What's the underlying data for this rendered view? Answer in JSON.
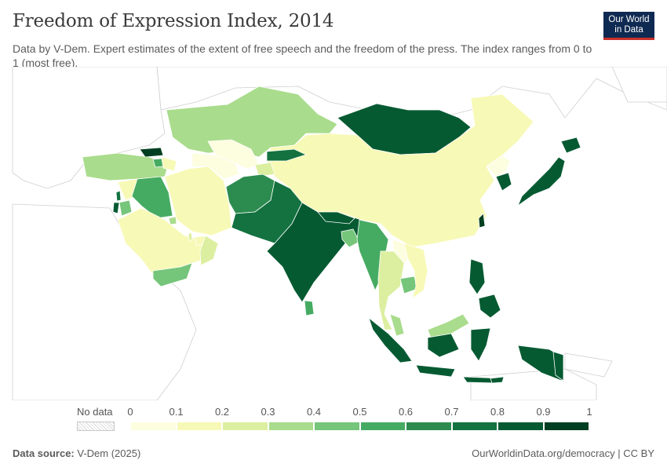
{
  "title": "Freedom of Expression Index, 2014",
  "subtitle": "Data by V-Dem. Expert estimates of the extent of free speech and the freedom of the press. The index ranges from 0 to 1 (most free).",
  "logo": {
    "line1": "Our World",
    "line2": "in Data"
  },
  "legend": {
    "no_data_label": "No data",
    "ticks": [
      "0",
      "0.1",
      "0.2",
      "0.3",
      "0.4",
      "0.5",
      "0.6",
      "0.7",
      "0.8",
      "0.9",
      "1"
    ],
    "colors": [
      "#fdfde0",
      "#f7f9b6",
      "#dcefa0",
      "#a9dc8c",
      "#75c57a",
      "#46ab62",
      "#2c8c4f",
      "#137240",
      "#065a32",
      "#003f21"
    ]
  },
  "footer": {
    "source_label": "Data source:",
    "source_value": "V-Dem (2025)",
    "url": "OurWorldinData.org/democracy | CC BY"
  },
  "map_data": {
    "region": "Asia",
    "year": "2014",
    "countries": [
      {
        "name": "Kazakhstan",
        "value": 0.35
      },
      {
        "name": "Mongolia",
        "value": 0.85
      },
      {
        "name": "China",
        "value": 0.12
      },
      {
        "name": "North Korea",
        "value": 0.02
      },
      {
        "name": "South Korea",
        "value": 0.8
      },
      {
        "name": "Japan",
        "value": 0.85
      },
      {
        "name": "Turkey",
        "value": 0.35
      },
      {
        "name": "Iran",
        "value": 0.15
      },
      {
        "name": "Iraq",
        "value": 0.55
      },
      {
        "name": "Syria",
        "value": 0.1
      },
      {
        "name": "Saudi Arabia",
        "value": 0.12
      },
      {
        "name": "Yemen",
        "value": 0.5
      },
      {
        "name": "Oman",
        "value": 0.2
      },
      {
        "name": "Turkmenistan",
        "value": 0.05
      },
      {
        "name": "Uzbekistan",
        "value": 0.05
      },
      {
        "name": "Kyrgyzstan",
        "value": 0.7
      },
      {
        "name": "Tajikistan",
        "value": 0.2
      },
      {
        "name": "Afghanistan",
        "value": 0.65
      },
      {
        "name": "Pakistan",
        "value": 0.75
      },
      {
        "name": "India",
        "value": 0.85
      },
      {
        "name": "Nepal",
        "value": 0.8
      },
      {
        "name": "Bangladesh",
        "value": 0.45
      },
      {
        "name": "Myanmar",
        "value": 0.55
      },
      {
        "name": "Thailand",
        "value": 0.3
      },
      {
        "name": "Laos",
        "value": 0.05
      },
      {
        "name": "Vietnam",
        "value": 0.12
      },
      {
        "name": "Cambodia",
        "value": 0.45
      },
      {
        "name": "Malaysia",
        "value": 0.4
      },
      {
        "name": "Indonesia",
        "value": 0.85
      },
      {
        "name": "Philippines",
        "value": 0.85
      },
      {
        "name": "Sri Lanka",
        "value": 0.55
      },
      {
        "name": "Georgia",
        "value": 0.9
      },
      {
        "name": "Armenia",
        "value": 0.5
      },
      {
        "name": "Azerbaijan",
        "value": 0.1
      },
      {
        "name": "Israel",
        "value": 0.85
      },
      {
        "name": "Jordan",
        "value": 0.45
      },
      {
        "name": "Lebanon",
        "value": 0.75
      },
      {
        "name": "United Arab Emirates",
        "value": 0.1
      },
      {
        "name": "Kuwait",
        "value": 0.4
      },
      {
        "name": "Qatar",
        "value": 0.2
      },
      {
        "name": "Timor-Leste",
        "value": 0.85
      },
      {
        "name": "Taiwan",
        "value": 0.95
      },
      {
        "name": "Papua New Guinea",
        "value": 0.85
      }
    ]
  }
}
